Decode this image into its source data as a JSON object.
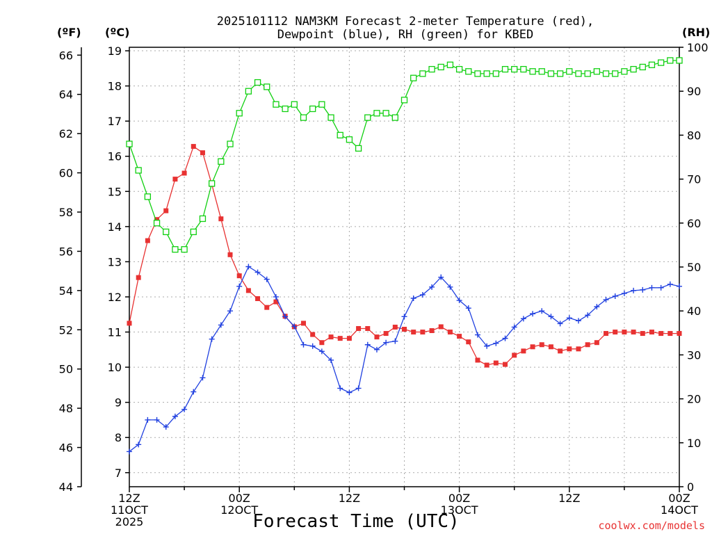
{
  "chart_data": {
    "type": "line",
    "title": [
      "2025101112 NAM3KM Forecast 2-meter Temperature (red),",
      "Dewpoint (blue), RH (green) for KBED"
    ],
    "xlabel": "Forecast Time (UTC)",
    "credit": "coolwx.com/models",
    "units": {
      "fahrenheit": "(ºF)",
      "celsius": "(ºC)",
      "rh": "(RH)"
    },
    "x_range_hours": [
      0,
      60
    ],
    "x_ticks": [
      {
        "h": 0,
        "lines": [
          "12Z",
          "11OCT",
          "2025"
        ]
      },
      {
        "h": 12,
        "lines": [
          "00Z",
          "12OCT"
        ]
      },
      {
        "h": 24,
        "lines": [
          "12Z"
        ]
      },
      {
        "h": 36,
        "lines": [
          "00Z",
          "13OCT"
        ]
      },
      {
        "h": 48,
        "lines": [
          "12Z"
        ]
      },
      {
        "h": 60,
        "lines": [
          "00Z",
          "14OCT"
        ]
      }
    ],
    "y_celsius": {
      "range": [
        6.6,
        19.1
      ],
      "ticks": [
        "7",
        "8",
        "9",
        "10",
        "11",
        "12",
        "13",
        "14",
        "15",
        "16",
        "17",
        "18",
        "19"
      ]
    },
    "y_fahrenheit": {
      "range": [
        44,
        66.4
      ],
      "ticks": [
        "44",
        "46",
        "48",
        "50",
        "52",
        "54",
        "56",
        "58",
        "60",
        "62",
        "64",
        "66"
      ]
    },
    "y_rh": {
      "range": [
        0,
        100
      ],
      "ticks": [
        "0",
        "10",
        "20",
        "30",
        "40",
        "50",
        "60",
        "70",
        "80",
        "90",
        "100"
      ]
    },
    "colors": {
      "temperature": "#e83232",
      "dewpoint": "#2040e0",
      "rh": "#10d010",
      "grid": "#aaaaaa",
      "credit": "#e83232"
    },
    "series": [
      {
        "name": "Temperature",
        "unit": "C",
        "color_key": "temperature",
        "marker": "filled-square",
        "values": [
          11.25,
          12.55,
          13.6,
          14.2,
          14.45,
          15.35,
          15.52,
          16.28,
          16.1,
          15.2,
          14.22,
          13.2,
          12.6,
          12.18,
          11.95,
          11.7,
          11.86,
          11.45,
          11.15,
          11.25,
          10.93,
          10.7,
          10.86,
          10.82,
          10.82,
          11.1,
          11.1,
          10.86,
          10.96,
          11.14,
          11.08,
          11.0,
          11.0,
          11.04,
          11.15,
          11.0,
          10.88,
          10.72,
          10.2,
          10.06,
          10.12,
          10.08,
          10.34,
          10.46,
          10.58,
          10.64,
          10.58,
          10.46,
          10.52,
          10.52,
          10.64,
          10.7,
          10.96,
          11.0,
          11.0,
          11.0,
          10.96,
          11.0,
          10.96,
          10.96,
          10.96
        ],
        "unit_display_c_values_note": ""
      },
      {
        "name": "Dewpoint",
        "unit": "C",
        "color_key": "dewpoint",
        "marker": "plus",
        "values": [
          7.6,
          7.8,
          8.5,
          8.5,
          8.3,
          8.6,
          8.8,
          9.3,
          9.7,
          10.8,
          11.2,
          11.6,
          12.3,
          12.86,
          12.7,
          12.5,
          12.0,
          11.44,
          11.16,
          10.64,
          10.6,
          10.45,
          10.2,
          9.4,
          9.28,
          9.4,
          10.64,
          10.5,
          10.7,
          10.74,
          11.44,
          11.96,
          12.06,
          12.28,
          12.56,
          12.28,
          11.9,
          11.68,
          10.92,
          10.6,
          10.68,
          10.82,
          11.14,
          11.38,
          11.52,
          11.6,
          11.44,
          11.24,
          11.4,
          11.32,
          11.48,
          11.72,
          11.92,
          12.02,
          12.1,
          12.18,
          12.2,
          12.26,
          12.26,
          12.36,
          12.3
        ],
        "unit_display": "C"
      },
      {
        "name": "RH",
        "unit": "%",
        "color_key": "rh",
        "marker": "open-square",
        "values": [
          78,
          72,
          66,
          60,
          58,
          54,
          54,
          58,
          61,
          69,
          74,
          78,
          85,
          90,
          92,
          91,
          87,
          86,
          87,
          84,
          86,
          87,
          84,
          80,
          79,
          77,
          84,
          85,
          85,
          84,
          88,
          93,
          94,
          95,
          95.5,
          96,
          95,
          94.5,
          94,
          94,
          94,
          95,
          95,
          95,
          94.5,
          94.5,
          94,
          94,
          94.5,
          94,
          94,
          94.5,
          94,
          94,
          94.5,
          95,
          95.5,
          96,
          96.5,
          97,
          97
        ]
      }
    ]
  }
}
